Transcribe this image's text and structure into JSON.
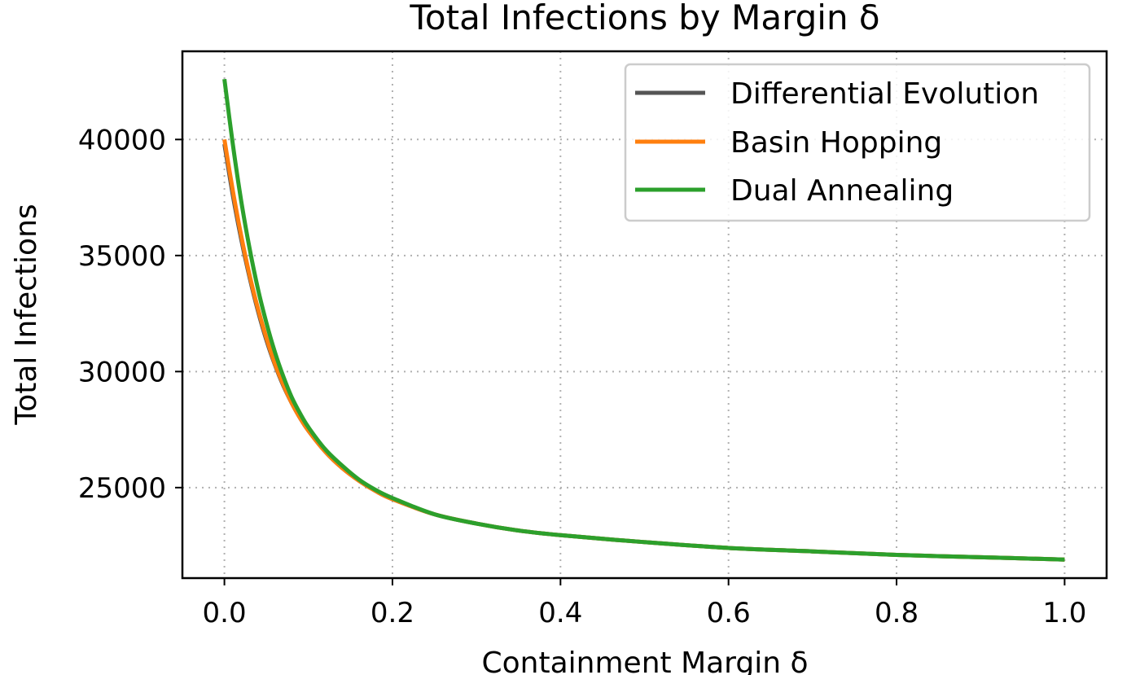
{
  "chart_data": {
    "type": "line",
    "title": "Total Infections by Margin δ",
    "xlabel": "Containment Margin δ",
    "ylabel": "Total Infections",
    "xlim": [
      -0.05,
      1.05
    ],
    "ylim": [
      21100,
      43800
    ],
    "xticks": [
      0.0,
      0.2,
      0.4,
      0.6,
      0.8,
      1.0
    ],
    "xtick_labels": [
      "0.0",
      "0.2",
      "0.4",
      "0.6",
      "0.8",
      "1.0"
    ],
    "yticks": [
      25000,
      30000,
      35000,
      40000
    ],
    "ytick_labels": [
      "25000",
      "30000",
      "35000",
      "40000"
    ],
    "grid": true,
    "legend_position": "top-right",
    "x": [
      0.0,
      0.01,
      0.02,
      0.03,
      0.04,
      0.05,
      0.06,
      0.07,
      0.08,
      0.09,
      0.1,
      0.12,
      0.14,
      0.16,
      0.18,
      0.2,
      0.25,
      0.3,
      0.35,
      0.4,
      0.5,
      0.6,
      0.7,
      0.8,
      0.9,
      1.0
    ],
    "series": [
      {
        "name": "Differential Evolution",
        "color": "#555555",
        "values": [
          39800,
          37600,
          35700,
          34050,
          32600,
          31350,
          30300,
          29400,
          28650,
          28000,
          27450,
          26550,
          25850,
          25300,
          24850,
          24500,
          23850,
          23450,
          23150,
          22950,
          22650,
          22400,
          22250,
          22100,
          22000,
          21900
        ]
      },
      {
        "name": "Basin Hopping",
        "color": "#ff7f0e",
        "values": [
          40000,
          37800,
          35850,
          34150,
          32700,
          31450,
          30350,
          29450,
          28650,
          28000,
          27450,
          26550,
          25850,
          25300,
          24850,
          24500,
          23850,
          23450,
          23150,
          22950,
          22650,
          22400,
          22250,
          22100,
          22000,
          21900
        ]
      },
      {
        "name": "Dual Annealing",
        "color": "#2ca02c",
        "values": [
          42600,
          39800,
          37350,
          35300,
          33550,
          32100,
          30850,
          29800,
          28900,
          28200,
          27600,
          26650,
          25950,
          25350,
          24900,
          24550,
          23850,
          23450,
          23150,
          22950,
          22650,
          22400,
          22250,
          22100,
          22000,
          21900
        ]
      }
    ]
  }
}
